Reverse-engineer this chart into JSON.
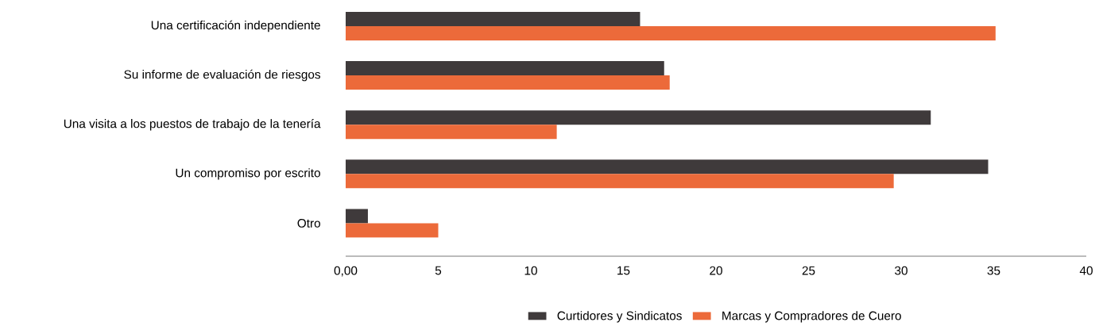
{
  "chart_data": {
    "type": "bar",
    "orientation": "horizontal",
    "categories": [
      "Una certificación independiente",
      "Su informe de evaluación de riesgos",
      "Una visita a los puestos de trabajo de la tenería",
      "Un compromiso por escrito",
      "Otro"
    ],
    "series": [
      {
        "name": "Curtidores y Sindicatos",
        "color": "#3f3a3b",
        "values": [
          15.9,
          17.2,
          31.6,
          34.7,
          1.2
        ]
      },
      {
        "name": "Marcas y Compradores de Cuero",
        "color": "#ec6a3a",
        "values": [
          35.1,
          17.5,
          11.4,
          29.6,
          5.0
        ]
      }
    ],
    "xlim": [
      0,
      40
    ],
    "xticks": [
      {
        "value": 0,
        "label": "0,00"
      },
      5,
      10,
      15,
      20,
      25,
      30,
      35,
      40
    ],
    "grid": false,
    "legend": "bottom"
  }
}
